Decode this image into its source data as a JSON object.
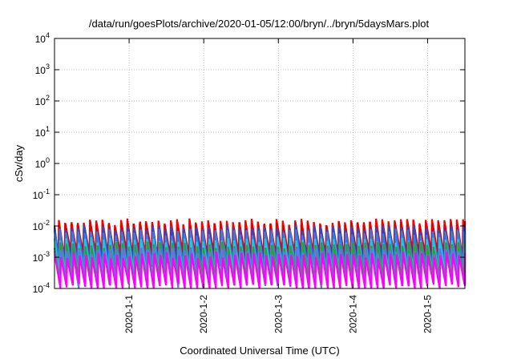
{
  "chart_data": {
    "type": "line",
    "title": "/data/run/goesPlots/archive/2020-01-05/12:00/bryn/../bryn/5daysMars.plot",
    "xlabel": "Coordinated Universal Time (UTC)",
    "ylabel": "cSv/day",
    "y_scale": "log",
    "ylim": [
      0.0001,
      10000
    ],
    "xlim_days_from_2020_01_01": [
      -1.0,
      4.5
    ],
    "grid": true,
    "legend": "none",
    "y_ticks": [
      {
        "base": "10",
        "exp": "4"
      },
      {
        "base": "10",
        "exp": "3"
      },
      {
        "base": "10",
        "exp": "2"
      },
      {
        "base": "10",
        "exp": "1"
      },
      {
        "base": "10",
        "exp": "0"
      },
      {
        "base": "10",
        "exp": "-1"
      },
      {
        "base": "10",
        "exp": "-2"
      },
      {
        "base": "10",
        "exp": "-3"
      },
      {
        "base": "10",
        "exp": "-4"
      }
    ],
    "x_ticks": [
      "2020-1-1",
      "2020-1-2",
      "2020-1-3",
      "2020-1-4",
      "2020-1-5"
    ],
    "sawtooth_period_hours": 2,
    "series": [
      {
        "color": "#ff0000",
        "peak": 0.014,
        "trough": 0.0012
      },
      {
        "color": "#e00000",
        "peak": 0.011,
        "trough": 0.0009
      },
      {
        "color": "#1a4fd6",
        "peak": 0.0085,
        "trough": 0.0006
      },
      {
        "color": "#2f7fe8",
        "peak": 0.0065,
        "trough": 0.00045
      },
      {
        "color": "#1ec8d8",
        "peak": 0.0035,
        "trough": 0.00025
      },
      {
        "color": "#2ea02e",
        "peak": 0.0025,
        "trough": 0.00018
      },
      {
        "color": "#7070e0",
        "peak": 0.0016,
        "trough": 0.00014
      },
      {
        "color": "#ff00ff",
        "peak": 0.0012,
        "trough": 0.00011
      }
    ]
  }
}
